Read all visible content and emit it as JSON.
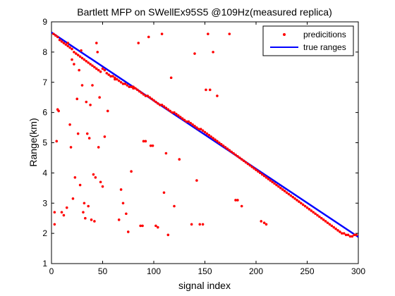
{
  "chart_data": {
    "type": "scatter",
    "title": "Bartlett MFP on SWellEx95S5 @109Hz(measured replica)",
    "xlabel": "signal index",
    "ylabel": "Range(km)",
    "xlim": [
      0,
      300
    ],
    "ylim": [
      1,
      9
    ],
    "xticks": [
      0,
      50,
      100,
      150,
      200,
      250,
      300
    ],
    "yticks": [
      1,
      2,
      3,
      4,
      5,
      6,
      7,
      8,
      9
    ],
    "grid": false,
    "legend_position": "top-right",
    "series": [
      {
        "name": "predicitions",
        "marker": "dot",
        "color": "#ff0000",
        "points": [
          [
            2,
            8.6
          ],
          [
            4,
            8.55
          ],
          [
            6,
            8.5
          ],
          [
            8,
            8.4
          ],
          [
            10,
            8.35
          ],
          [
            12,
            8.3
          ],
          [
            14,
            8.25
          ],
          [
            16,
            8.2
          ],
          [
            18,
            8.15
          ],
          [
            20,
            8.1
          ],
          [
            22,
            8.0
          ],
          [
            24,
            7.95
          ],
          [
            26,
            7.9
          ],
          [
            28,
            7.85
          ],
          [
            30,
            7.8
          ],
          [
            32,
            7.75
          ],
          [
            34,
            7.7
          ],
          [
            36,
            7.65
          ],
          [
            38,
            7.6
          ],
          [
            40,
            7.55
          ],
          [
            42,
            7.5
          ],
          [
            44,
            7.45
          ],
          [
            46,
            7.4
          ],
          [
            48,
            7.35
          ],
          [
            50,
            7.45
          ],
          [
            52,
            7.4
          ],
          [
            54,
            7.3
          ],
          [
            56,
            7.25
          ],
          [
            58,
            7.2
          ],
          [
            60,
            7.2
          ],
          [
            62,
            7.15
          ],
          [
            64,
            7.1
          ],
          [
            66,
            7.05
          ],
          [
            68,
            7.0
          ],
          [
            70,
            6.95
          ],
          [
            72,
            6.95
          ],
          [
            74,
            6.9
          ],
          [
            76,
            6.85
          ],
          [
            78,
            6.85
          ],
          [
            80,
            6.8
          ],
          [
            82,
            6.8
          ],
          [
            84,
            6.75
          ],
          [
            86,
            6.7
          ],
          [
            88,
            6.65
          ],
          [
            90,
            6.6
          ],
          [
            92,
            6.55
          ],
          [
            94,
            6.55
          ],
          [
            96,
            6.5
          ],
          [
            98,
            6.45
          ],
          [
            100,
            6.4
          ],
          [
            102,
            6.35
          ],
          [
            104,
            6.3
          ],
          [
            106,
            6.25
          ],
          [
            108,
            6.25
          ],
          [
            110,
            6.2
          ],
          [
            112,
            6.15
          ],
          [
            114,
            6.1
          ],
          [
            116,
            6.05
          ],
          [
            118,
            6.0
          ],
          [
            120,
            6.0
          ],
          [
            122,
            5.95
          ],
          [
            124,
            5.9
          ],
          [
            126,
            5.85
          ],
          [
            128,
            5.8
          ],
          [
            130,
            5.75
          ],
          [
            132,
            5.7
          ],
          [
            134,
            5.7
          ],
          [
            136,
            5.65
          ],
          [
            138,
            5.6
          ],
          [
            140,
            5.55
          ],
          [
            142,
            5.5
          ],
          [
            144,
            5.45
          ],
          [
            146,
            5.45
          ],
          [
            148,
            5.4
          ],
          [
            150,
            5.35
          ],
          [
            152,
            5.3
          ],
          [
            154,
            5.25
          ],
          [
            156,
            5.2
          ],
          [
            158,
            5.15
          ],
          [
            160,
            5.1
          ],
          [
            162,
            5.05
          ],
          [
            164,
            5.0
          ],
          [
            166,
            4.95
          ],
          [
            168,
            4.9
          ],
          [
            170,
            4.85
          ],
          [
            172,
            4.8
          ],
          [
            174,
            4.75
          ],
          [
            176,
            4.7
          ],
          [
            178,
            4.65
          ],
          [
            180,
            4.6
          ],
          [
            182,
            4.55
          ],
          [
            184,
            4.5
          ],
          [
            186,
            4.45
          ],
          [
            188,
            4.4
          ],
          [
            190,
            4.35
          ],
          [
            192,
            4.3
          ],
          [
            194,
            4.25
          ],
          [
            196,
            4.2
          ],
          [
            198,
            4.15
          ],
          [
            200,
            4.1
          ],
          [
            202,
            4.05
          ],
          [
            204,
            4.0
          ],
          [
            206,
            3.95
          ],
          [
            208,
            3.9
          ],
          [
            210,
            3.85
          ],
          [
            212,
            3.8
          ],
          [
            214,
            3.75
          ],
          [
            216,
            3.7
          ],
          [
            218,
            3.65
          ],
          [
            220,
            3.6
          ],
          [
            222,
            3.55
          ],
          [
            224,
            3.5
          ],
          [
            226,
            3.45
          ],
          [
            228,
            3.4
          ],
          [
            230,
            3.35
          ],
          [
            232,
            3.3
          ],
          [
            234,
            3.25
          ],
          [
            236,
            3.2
          ],
          [
            238,
            3.15
          ],
          [
            240,
            3.1
          ],
          [
            242,
            3.05
          ],
          [
            244,
            3.0
          ],
          [
            246,
            2.95
          ],
          [
            248,
            2.9
          ],
          [
            250,
            2.85
          ],
          [
            252,
            2.8
          ],
          [
            254,
            2.75
          ],
          [
            256,
            2.7
          ],
          [
            258,
            2.65
          ],
          [
            260,
            2.6
          ],
          [
            262,
            2.55
          ],
          [
            264,
            2.5
          ],
          [
            266,
            2.45
          ],
          [
            268,
            2.4
          ],
          [
            270,
            2.35
          ],
          [
            272,
            2.3
          ],
          [
            274,
            2.25
          ],
          [
            276,
            2.2
          ],
          [
            278,
            2.15
          ],
          [
            280,
            2.1
          ],
          [
            282,
            2.05
          ],
          [
            284,
            2.0
          ],
          [
            286,
            2.0
          ],
          [
            288,
            1.95
          ],
          [
            290,
            1.95
          ],
          [
            292,
            1.9
          ],
          [
            294,
            1.9
          ],
          [
            296,
            1.95
          ],
          [
            298,
            1.95
          ],
          [
            3,
            2.3
          ],
          [
            3,
            2.7
          ],
          [
            5,
            5.05
          ],
          [
            6,
            6.1
          ],
          [
            7,
            6.05
          ],
          [
            10,
            2.7
          ],
          [
            12,
            2.6
          ],
          [
            15,
            2.85
          ],
          [
            16,
            8.3
          ],
          [
            18,
            5.6
          ],
          [
            19,
            4.85
          ],
          [
            20,
            7.75
          ],
          [
            21,
            3.15
          ],
          [
            22,
            7.6
          ],
          [
            23,
            3.85
          ],
          [
            25,
            6.45
          ],
          [
            26,
            5.3
          ],
          [
            27,
            7.4
          ],
          [
            28,
            3.6
          ],
          [
            29,
            8.05
          ],
          [
            30,
            6.9
          ],
          [
            31,
            2.7
          ],
          [
            32,
            3.0
          ],
          [
            33,
            2.5
          ],
          [
            34,
            6.35
          ],
          [
            35,
            5.3
          ],
          [
            36,
            2.9
          ],
          [
            37,
            5.15
          ],
          [
            38,
            6.25
          ],
          [
            39,
            2.45
          ],
          [
            40,
            6.9
          ],
          [
            41,
            3.95
          ],
          [
            42,
            2.4
          ],
          [
            43,
            3.85
          ],
          [
            44,
            8.3
          ],
          [
            45,
            8.0
          ],
          [
            46,
            4.85
          ],
          [
            47,
            6.5
          ],
          [
            48,
            3.7
          ],
          [
            50,
            3.55
          ],
          [
            52,
            5.2
          ],
          [
            55,
            6.05
          ],
          [
            58,
            7.2
          ],
          [
            62,
            7.1
          ],
          [
            66,
            2.45
          ],
          [
            68,
            3.45
          ],
          [
            70,
            3.0
          ],
          [
            73,
            2.65
          ],
          [
            75,
            2.05
          ],
          [
            78,
            4.05
          ],
          [
            80,
            6.85
          ],
          [
            85,
            8.3
          ],
          [
            87,
            2.25
          ],
          [
            89,
            2.25
          ],
          [
            90,
            5.05
          ],
          [
            92,
            5.05
          ],
          [
            95,
            8.5
          ],
          [
            97,
            4.9
          ],
          [
            99,
            4.9
          ],
          [
            102,
            2.25
          ],
          [
            104,
            2.2
          ],
          [
            108,
            8.6
          ],
          [
            110,
            3.35
          ],
          [
            112,
            4.65
          ],
          [
            114,
            1.95
          ],
          [
            117,
            7.15
          ],
          [
            120,
            2.9
          ],
          [
            125,
            4.45
          ],
          [
            137,
            2.3
          ],
          [
            140,
            7.95
          ],
          [
            142,
            3.75
          ],
          [
            145,
            2.3
          ],
          [
            148,
            2.3
          ],
          [
            151,
            6.75
          ],
          [
            153,
            8.6
          ],
          [
            155,
            6.75
          ],
          [
            158,
            8.0
          ],
          [
            162,
            6.55
          ],
          [
            174,
            8.6
          ],
          [
            180,
            3.1
          ],
          [
            182,
            3.1
          ],
          [
            186,
            2.9
          ],
          [
            205,
            2.4
          ],
          [
            208,
            2.35
          ],
          [
            210,
            2.3
          ]
        ]
      },
      {
        "name": "true ranges",
        "marker": "line",
        "color": "#0000ff",
        "points": [
          [
            0,
            8.65
          ],
          [
            300,
            1.88
          ]
        ]
      }
    ]
  }
}
